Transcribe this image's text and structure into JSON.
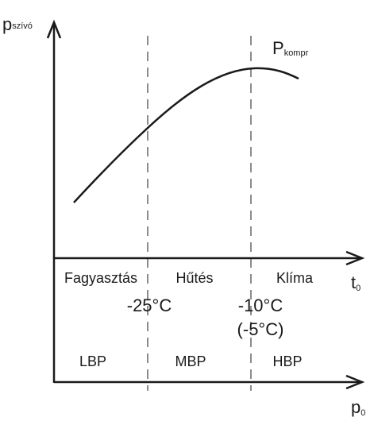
{
  "axis_labels": {
    "vertical": {
      "main": "p",
      "sub": "szívó"
    },
    "temperature": {
      "main": "t",
      "sub": "0"
    },
    "pressure": {
      "main": "p",
      "sub": "0"
    }
  },
  "curve_label": {
    "main": "P",
    "sub": "kompr"
  },
  "zones": [
    "Fagyasztás",
    "Hűtés",
    "Klíma"
  ],
  "boundaries": [
    {
      "temperature": "-25°C"
    },
    {
      "temperature": "-10°C",
      "alternative": "(-5°C)"
    }
  ],
  "pressure_classes": [
    "LBP",
    "MBP",
    "HBP"
  ]
}
